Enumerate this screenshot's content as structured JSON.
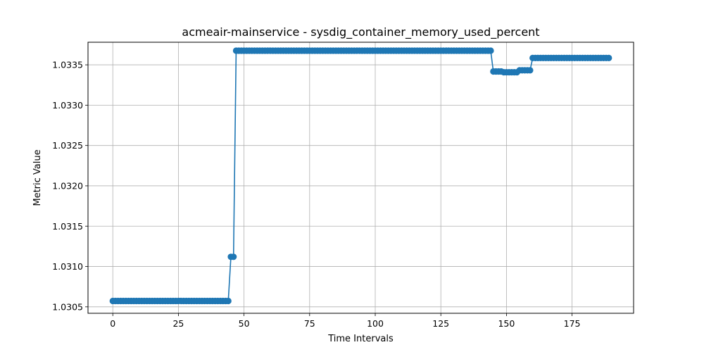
{
  "chart_data": {
    "type": "line",
    "title": "acmeair-mainservice - sysdig_container_memory_used_percent",
    "xlabel": "Time Intervals",
    "ylabel": "Metric Value",
    "xlim": [
      -9.45,
      198.45
    ],
    "ylim": [
      1.03042,
      1.03378
    ],
    "grid": true,
    "x_ticks": [
      0,
      25,
      50,
      75,
      100,
      125,
      150,
      175
    ],
    "y_ticks": [
      1.0305,
      1.031,
      1.0315,
      1.032,
      1.0325,
      1.033,
      1.0335
    ],
    "y_tick_labels": [
      "1.0305",
      "1.0310",
      "1.0315",
      "1.0320",
      "1.0325",
      "1.0330",
      "1.0335"
    ],
    "color": "#1f77b4",
    "marker": "circle",
    "segments": [
      {
        "from": 0,
        "to": 44,
        "value": 1.030573
      },
      {
        "from": 45,
        "to": 46,
        "value": 1.03112
      },
      {
        "from": 47,
        "to": 144,
        "value": 1.033675
      },
      {
        "from": 145,
        "to": 148,
        "value": 1.033418
      },
      {
        "from": 149,
        "to": 154,
        "value": 1.033408
      },
      {
        "from": 155,
        "to": 159,
        "value": 1.033432
      },
      {
        "from": 160,
        "to": 189,
        "value": 1.033585
      }
    ]
  }
}
